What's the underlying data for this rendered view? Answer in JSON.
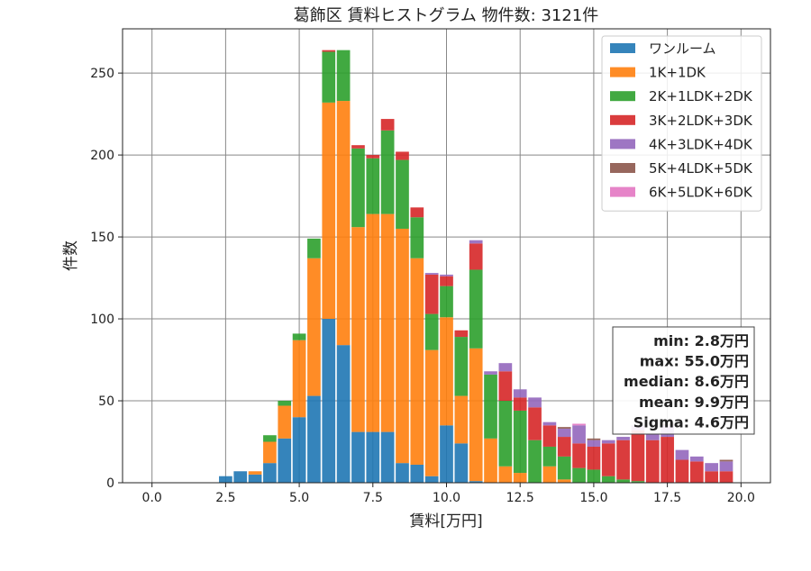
{
  "chart_data": {
    "type": "bar",
    "stacked": true,
    "title": "葛飾区 賃料ヒストグラム 物件数: 3121件",
    "xlabel": "賃料[万円]",
    "ylabel": "件数",
    "xlim": [
      -1.0,
      21.0
    ],
    "ylim": [
      0,
      277
    ],
    "xticks": [
      0.0,
      2.5,
      5.0,
      7.5,
      10.0,
      12.5,
      15.0,
      17.5,
      20.0
    ],
    "xtick_labels": [
      "0.0",
      "2.5",
      "5.0",
      "7.5",
      "10.0",
      "12.5",
      "15.0",
      "17.5",
      "20.0"
    ],
    "yticks": [
      0,
      50,
      100,
      150,
      200,
      250
    ],
    "ytick_labels": [
      "0",
      "50",
      "100",
      "150",
      "200",
      "250"
    ],
    "grid": true,
    "legend_position": "top-right",
    "bin_width": 0.5,
    "x": [
      2.5,
      3.0,
      3.5,
      4.0,
      4.5,
      5.0,
      5.5,
      6.0,
      6.5,
      7.0,
      7.5,
      8.0,
      8.5,
      9.0,
      9.5,
      10.0,
      10.5,
      11.0,
      11.5,
      12.0,
      12.5,
      13.0,
      13.5,
      14.0,
      14.5,
      15.0,
      15.5,
      16.0,
      16.5,
      17.0,
      17.5,
      18.0,
      18.5,
      19.0,
      19.5
    ],
    "series": [
      {
        "name": "ワンルーム",
        "color": "#1f77b4",
        "values": [
          4,
          7,
          5,
          12,
          27,
          40,
          53,
          100,
          84,
          31,
          31,
          31,
          12,
          11,
          4,
          35,
          24,
          1,
          0,
          0,
          0,
          0,
          0,
          0,
          0,
          0,
          0,
          0,
          0,
          0,
          0,
          0,
          0,
          0,
          0
        ]
      },
      {
        "name": "1K+1DK",
        "color": "#ff7f0e",
        "values": [
          0,
          0,
          2,
          13,
          20,
          47,
          84,
          132,
          149,
          125,
          133,
          133,
          143,
          126,
          77,
          66,
          29,
          81,
          27,
          10,
          6,
          0,
          10,
          2,
          0,
          0,
          0,
          0,
          0,
          0,
          0,
          0,
          0,
          0,
          0
        ]
      },
      {
        "name": "2K+1LDK+2DK",
        "color": "#2ca02c",
        "values": [
          0,
          0,
          0,
          4,
          3,
          4,
          12,
          31,
          31,
          48,
          34,
          51,
          42,
          25,
          22,
          19,
          36,
          48,
          39,
          40,
          38,
          26,
          12,
          14,
          9,
          8,
          4,
          2,
          1,
          0,
          0,
          0,
          0,
          0,
          0
        ]
      },
      {
        "name": "3K+2LDK+3DK",
        "color": "#d62728",
        "values": [
          0,
          0,
          0,
          0,
          0,
          0,
          0,
          1,
          0,
          2,
          2,
          7,
          5,
          6,
          24,
          6,
          4,
          16,
          0,
          18,
          8,
          20,
          13,
          12,
          15,
          14,
          20,
          24,
          31,
          26,
          28,
          14,
          13,
          7,
          7
        ]
      },
      {
        "name": "4K+3LDK+4DK",
        "color": "#9467bd",
        "values": [
          0,
          0,
          0,
          0,
          0,
          0,
          0,
          0,
          0,
          0,
          0,
          0,
          0,
          0,
          1,
          1,
          0,
          2,
          2,
          5,
          5,
          6,
          2,
          5,
          11,
          4,
          2,
          2,
          3,
          4,
          7,
          6,
          3,
          5,
          6
        ]
      },
      {
        "name": "5K+4LDK+5DK",
        "color": "#8c564b",
        "values": [
          0,
          0,
          0,
          0,
          0,
          0,
          0,
          0,
          0,
          0,
          0,
          0,
          0,
          0,
          0,
          0,
          0,
          0,
          0,
          0,
          0,
          0,
          0,
          1,
          0,
          1,
          0,
          0,
          0,
          0,
          1,
          0,
          0,
          0,
          1
        ]
      },
      {
        "name": "6K+5LDK+6DK",
        "color": "#e377c2",
        "values": [
          0,
          0,
          0,
          0,
          0,
          0,
          0,
          0,
          0,
          0,
          0,
          0,
          0,
          0,
          0,
          0,
          0,
          0,
          0,
          0,
          0,
          0,
          0,
          0,
          1,
          0,
          0,
          0,
          0,
          0,
          0,
          0,
          0,
          0,
          0
        ]
      }
    ],
    "stats_box": {
      "lines": [
        "min: 2.8万円",
        "max: 55.0万円",
        "median: 8.6万円",
        "mean: 9.9万円",
        "Sigma: 4.6万円"
      ]
    }
  }
}
